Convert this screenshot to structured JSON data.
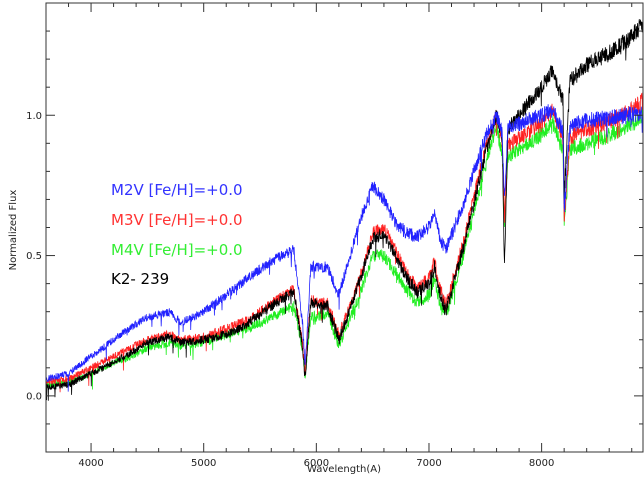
{
  "chart_data": {
    "type": "line",
    "title": "",
    "xlabel": "Wavelength(A)",
    "ylabel": "Normalized Flux",
    "xlim": [
      3600,
      8900
    ],
    "ylim": [
      -0.2,
      1.4
    ],
    "xticks": [
      4000,
      5000,
      6000,
      7000,
      8000
    ],
    "xtick_labels": [
      "4000",
      "5000",
      "6000",
      "7000",
      "8000"
    ],
    "yticks": [
      0.0,
      0.5,
      1.0
    ],
    "ytick_labels": [
      "0.0",
      "0.5",
      "1.0"
    ],
    "grid": false,
    "legend_position": "middle-left",
    "legend": [
      {
        "label": "M2V [Fe/H]=+0.0",
        "color": "#3333ff"
      },
      {
        "label": "M3V [Fe/H]=+0.0",
        "color": "#ff3333"
      },
      {
        "label": "M4V [Fe/H]=+0.0",
        "color": "#33ee33"
      },
      {
        "label": "K2- 239",
        "color": "#000000"
      }
    ],
    "series": [
      {
        "name": "M4V [Fe/H]=+0.0",
        "color": "#22ee22",
        "x": [
          3600,
          3800,
          4000,
          4200,
          4300,
          4500,
          4700,
          4800,
          5000,
          5200,
          5400,
          5600,
          5800,
          5880,
          5900,
          5950,
          6100,
          6200,
          6300,
          6400,
          6500,
          6600,
          6700,
          6800,
          6900,
          7000,
          7050,
          7100,
          7150,
          7300,
          7500,
          7600,
          7650,
          7670,
          7700,
          7800,
          8000,
          8100,
          8190,
          8200,
          8250,
          8400,
          8600,
          8800,
          8900
        ],
        "y": [
          0.04,
          0.05,
          0.08,
          0.12,
          0.13,
          0.17,
          0.19,
          0.18,
          0.19,
          0.22,
          0.24,
          0.28,
          0.32,
          0.16,
          0.07,
          0.28,
          0.29,
          0.18,
          0.28,
          0.38,
          0.5,
          0.5,
          0.44,
          0.38,
          0.33,
          0.36,
          0.42,
          0.32,
          0.29,
          0.49,
          0.82,
          0.96,
          0.86,
          0.6,
          0.85,
          0.88,
          0.93,
          0.98,
          0.88,
          0.6,
          0.88,
          0.9,
          0.93,
          0.97,
          1.0
        ]
      },
      {
        "name": "M3V [Fe/H]=+0.0",
        "color": "#ff2222",
        "x": [
          3600,
          3800,
          4000,
          4200,
          4300,
          4500,
          4700,
          4800,
          5000,
          5200,
          5400,
          5600,
          5800,
          5880,
          5900,
          5950,
          6100,
          6200,
          6300,
          6400,
          6500,
          6600,
          6700,
          6800,
          6900,
          7000,
          7050,
          7100,
          7150,
          7300,
          7500,
          7600,
          7650,
          7670,
          7700,
          7800,
          8000,
          8100,
          8190,
          8200,
          8250,
          8400,
          8600,
          8800,
          8900
        ],
        "y": [
          0.05,
          0.06,
          0.1,
          0.14,
          0.16,
          0.2,
          0.22,
          0.2,
          0.21,
          0.24,
          0.27,
          0.33,
          0.38,
          0.18,
          0.08,
          0.34,
          0.33,
          0.22,
          0.32,
          0.44,
          0.58,
          0.6,
          0.52,
          0.44,
          0.38,
          0.42,
          0.48,
          0.38,
          0.32,
          0.54,
          0.88,
          1.0,
          0.9,
          0.62,
          0.89,
          0.92,
          0.97,
          1.02,
          0.92,
          0.62,
          0.92,
          0.95,
          0.98,
          1.02,
          1.05
        ]
      },
      {
        "name": "K2- 239",
        "color": "#000000",
        "x": [
          3600,
          3800,
          4000,
          4200,
          4300,
          4500,
          4700,
          4800,
          5000,
          5200,
          5400,
          5600,
          5800,
          5880,
          5900,
          5950,
          6100,
          6200,
          6300,
          6400,
          6500,
          6600,
          6700,
          6800,
          6900,
          7000,
          7050,
          7100,
          7150,
          7300,
          7500,
          7600,
          7650,
          7670,
          7700,
          7800,
          8000,
          8100,
          8190,
          8200,
          8250,
          8400,
          8600,
          8800,
          8900
        ],
        "y": [
          0.03,
          0.04,
          0.08,
          0.12,
          0.14,
          0.19,
          0.21,
          0.19,
          0.2,
          0.22,
          0.26,
          0.32,
          0.37,
          0.17,
          0.06,
          0.33,
          0.32,
          0.2,
          0.31,
          0.43,
          0.56,
          0.58,
          0.5,
          0.42,
          0.37,
          0.4,
          0.46,
          0.36,
          0.3,
          0.52,
          0.86,
          1.0,
          0.92,
          0.45,
          0.95,
          1.0,
          1.1,
          1.16,
          1.05,
          0.7,
          1.12,
          1.18,
          1.22,
          1.28,
          1.33
        ]
      },
      {
        "name": "M2V [Fe/H]=+0.0",
        "color": "#2222ff",
        "x": [
          3600,
          3800,
          4000,
          4200,
          4300,
          4500,
          4700,
          4800,
          5000,
          5200,
          5400,
          5600,
          5800,
          5880,
          5900,
          5950,
          6100,
          6200,
          6300,
          6400,
          6500,
          6600,
          6700,
          6800,
          6900,
          7000,
          7050,
          7100,
          7150,
          7300,
          7500,
          7600,
          7650,
          7670,
          7700,
          7800,
          8000,
          8100,
          8190,
          8200,
          8250,
          8400,
          8600,
          8800,
          8900
        ],
        "y": [
          0.06,
          0.08,
          0.14,
          0.2,
          0.23,
          0.28,
          0.3,
          0.26,
          0.3,
          0.36,
          0.42,
          0.48,
          0.52,
          0.25,
          0.1,
          0.46,
          0.46,
          0.36,
          0.5,
          0.64,
          0.75,
          0.7,
          0.62,
          0.58,
          0.57,
          0.6,
          0.66,
          0.56,
          0.52,
          0.68,
          0.92,
          1.0,
          0.94,
          0.7,
          0.96,
          0.97,
          1.0,
          1.02,
          0.94,
          0.65,
          0.96,
          0.98,
          0.99,
          1.0,
          1.0
        ]
      }
    ]
  }
}
